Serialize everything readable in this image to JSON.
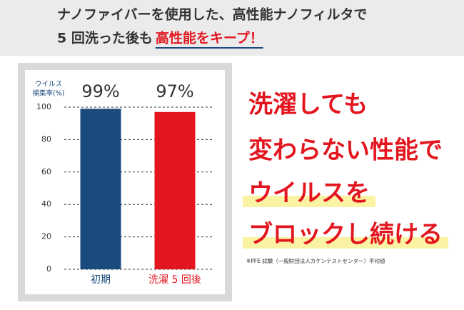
{
  "header": {
    "line1": "ナノファイバーを使用した、高性能ナノフィルタで",
    "line2": "5 回洗った後も",
    "line2_highlight": "高性能をキープ！"
  },
  "chart_data": {
    "type": "bar",
    "ylabel": [
      "ウイルス",
      "捕集率(%)"
    ],
    "categories": [
      "初期",
      "洗濯 5 回後"
    ],
    "values": [
      99,
      97
    ],
    "value_labels": [
      "99%",
      "97%"
    ],
    "colors": [
      "#1b4a7d",
      "#e3161f"
    ],
    "ylim": [
      0,
      100
    ],
    "yticks": [
      0,
      20,
      40,
      60,
      80,
      100
    ],
    "grid": true
  },
  "message": {
    "lines": [
      "洗濯しても",
      "変わらない性能で",
      "ウイルスを",
      "ブロックし続ける"
    ],
    "highlighted_lines": [
      2,
      3
    ],
    "color": "#e3161f",
    "highlight_color": "#fbf3a4"
  },
  "footnote": "※PFE 試験（一般財団法人カケンテストセンター）平均値"
}
